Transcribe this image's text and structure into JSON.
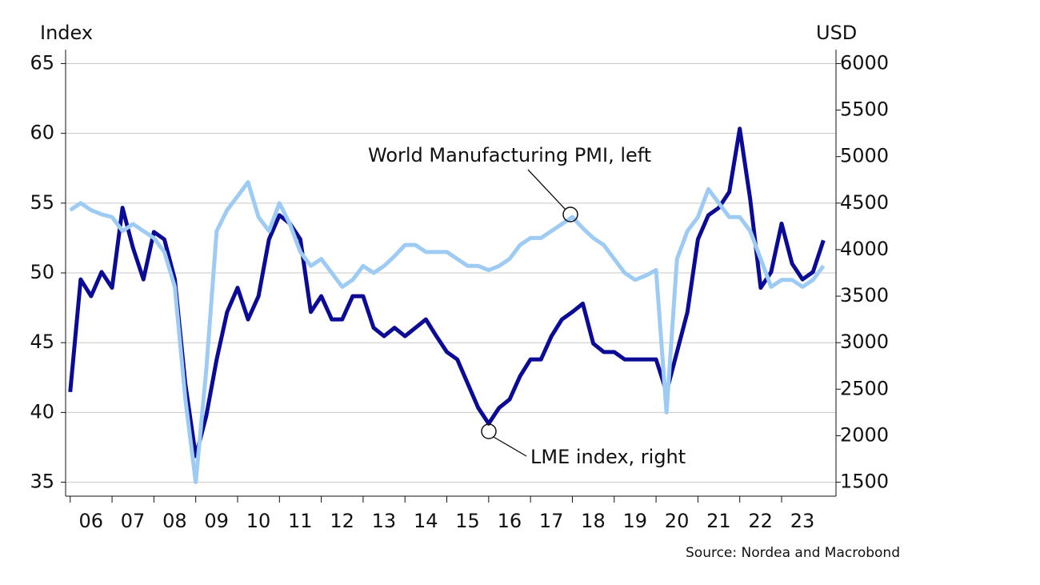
{
  "chart_data": {
    "type": "line",
    "y_axis_label": "Index",
    "y2_axis_label": "USD",
    "annotations": [
      "World Manufacturing PMI, left",
      "LME index, right"
    ],
    "source": "Source: Nordea and Macrobond",
    "x": [
      2006.0,
      2006.25,
      2006.5,
      2006.75,
      2007.0,
      2007.25,
      2007.5,
      2007.75,
      2008.0,
      2008.25,
      2008.5,
      2008.75,
      2009.0,
      2009.25,
      2009.5,
      2009.75,
      2010.0,
      2010.25,
      2010.5,
      2010.75,
      2011.0,
      2011.25,
      2011.5,
      2011.75,
      2012.0,
      2012.25,
      2012.5,
      2012.75,
      2013.0,
      2013.25,
      2013.5,
      2013.75,
      2014.0,
      2014.25,
      2014.5,
      2014.75,
      2015.0,
      2015.25,
      2015.5,
      2015.75,
      2016.0,
      2016.25,
      2016.5,
      2016.75,
      2017.0,
      2017.25,
      2017.5,
      2017.75,
      2018.0,
      2018.25,
      2018.5,
      2018.75,
      2019.0,
      2019.25,
      2019.5,
      2019.75,
      2020.0,
      2020.25,
      2020.5,
      2020.75,
      2021.0,
      2021.25,
      2021.5,
      2021.75,
      2022.0,
      2022.25,
      2022.5,
      2022.75,
      2023.0,
      2023.25,
      2023.5,
      2023.75,
      2024.0
    ],
    "series": [
      {
        "name": "LME index, right",
        "color": "#0b0b96",
        "axis": "y2",
        "values": [
          2470,
          3680,
          3500,
          3760,
          3590,
          4450,
          4020,
          3680,
          4190,
          4110,
          3680,
          2560,
          1780,
          2210,
          2820,
          3330,
          3590,
          3250,
          3500,
          4110,
          4370,
          4280,
          4110,
          3330,
          3500,
          3250,
          3250,
          3500,
          3500,
          3160,
          3070,
          3160,
          3070,
          3160,
          3250,
          3070,
          2900,
          2820,
          2560,
          2300,
          2130,
          2300,
          2390,
          2640,
          2820,
          2820,
          3070,
          3250,
          3330,
          3420,
          2990,
          2900,
          2900,
          2820,
          2820,
          2820,
          2820,
          2470,
          2900,
          3330,
          4110,
          4370,
          4450,
          4620,
          5300,
          4540,
          3590,
          3760,
          4280,
          3850,
          3680,
          3760,
          4100
        ]
      },
      {
        "name": "World Manufacturing PMI, left",
        "color": "#9dcbf4",
        "values": [
          54.5,
          55,
          54.5,
          54.2,
          54,
          53,
          53.5,
          53,
          52.5,
          51.5,
          49,
          41,
          35,
          43,
          53,
          54.5,
          55.5,
          56.5,
          54,
          53,
          55,
          53.5,
          51.5,
          50.5,
          51,
          50,
          49,
          49.5,
          50.5,
          50,
          50.5,
          51.2,
          52,
          52,
          51.5,
          51.5,
          51.5,
          51,
          50.5,
          50.5,
          50.2,
          50.5,
          51,
          52,
          52.5,
          52.5,
          53,
          53.5,
          54,
          53.2,
          52.5,
          52,
          51,
          50,
          49.5,
          49.8,
          50.2,
          40,
          51,
          53,
          54,
          56,
          55,
          54,
          54,
          53,
          51,
          49,
          49.5,
          49.5,
          49,
          49.5,
          50.5
        ]
      }
    ],
    "xlim": [
      2005.89,
      2024.3
    ],
    "xticks": [
      {
        "value": 2006,
        "label": "06"
      },
      {
        "value": 2007,
        "label": "07"
      },
      {
        "value": 2008,
        "label": "08"
      },
      {
        "value": 2009,
        "label": "09"
      },
      {
        "value": 2010,
        "label": "10"
      },
      {
        "value": 2011,
        "label": "11"
      },
      {
        "value": 2012,
        "label": "12"
      },
      {
        "value": 2013,
        "label": "13"
      },
      {
        "value": 2014,
        "label": "14"
      },
      {
        "value": 2015,
        "label": "15"
      },
      {
        "value": 2016,
        "label": "16"
      },
      {
        "value": 2017,
        "label": "17"
      },
      {
        "value": 2018,
        "label": "18"
      },
      {
        "value": 2019,
        "label": "19"
      },
      {
        "value": 2020,
        "label": "20"
      },
      {
        "value": 2021,
        "label": "21"
      },
      {
        "value": 2022,
        "label": "22"
      },
      {
        "value": 2023,
        "label": "23"
      }
    ],
    "ylim": [
      34,
      66
    ],
    "yticks": [
      35,
      40,
      45,
      50,
      55,
      60,
      65
    ],
    "y2lim": [
      1350,
      6150
    ],
    "y2ticks": [
      1500,
      2000,
      2500,
      3000,
      3500,
      4000,
      4500,
      5000,
      5500,
      6000
    ],
    "grid": true
  }
}
